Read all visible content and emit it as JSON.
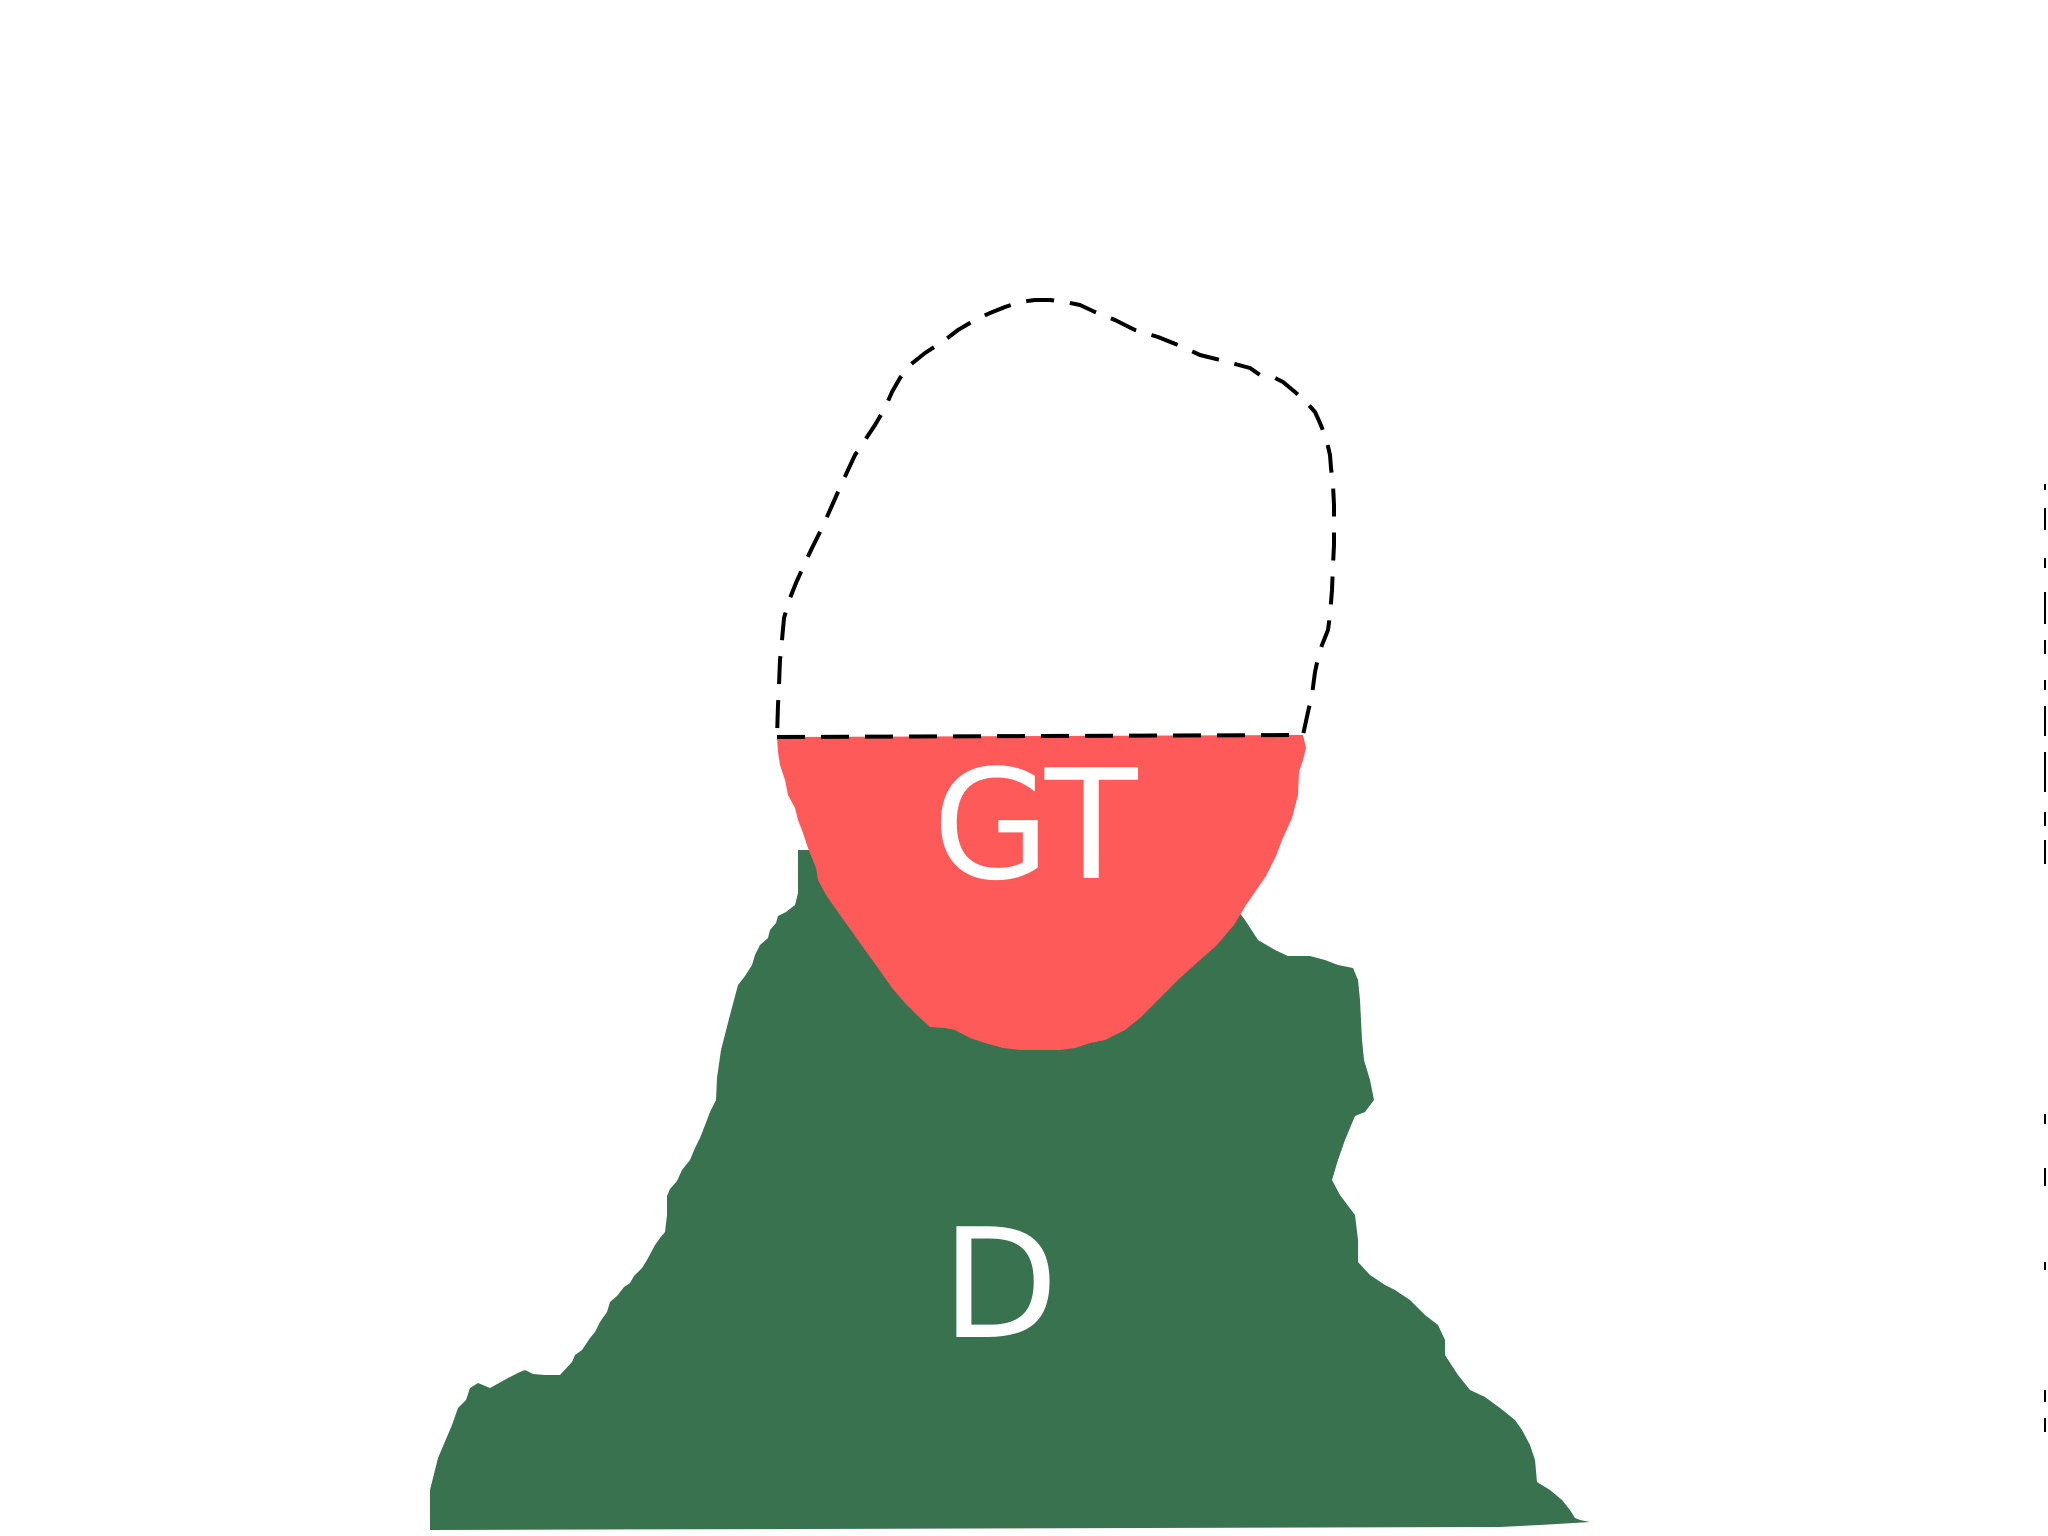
{
  "regions": {
    "gt": {
      "label": "GT",
      "color": "#fe5a59"
    },
    "d": {
      "label": "D",
      "color": "#38724e"
    },
    "outline": {
      "color": "#000000",
      "style": "dashed"
    }
  },
  "background": "#ffffff"
}
